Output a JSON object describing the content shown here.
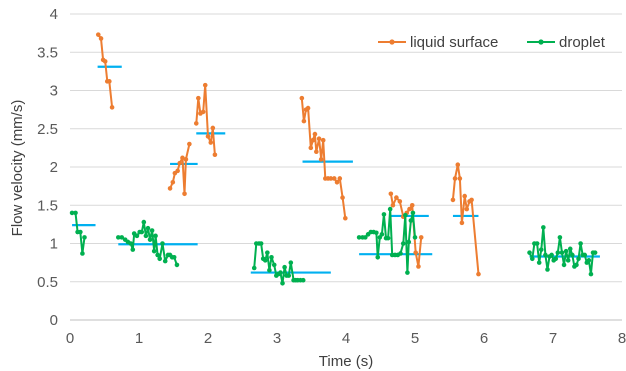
{
  "chart_data": {
    "type": "line",
    "title": "",
    "xlabel": "Time (s)",
    "ylabel": "Flow velocity (mm/s)",
    "xlim": [
      0,
      8
    ],
    "ylim": [
      0,
      4
    ],
    "x_ticks": [
      "0",
      "1",
      "2",
      "3",
      "4",
      "5",
      "6",
      "7",
      "8"
    ],
    "y_ticks": [
      "0",
      "0.5",
      "1",
      "1.5",
      "2",
      "2.5",
      "3",
      "3.5",
      "4"
    ],
    "grid": "horizontal",
    "legend_position": "top-right",
    "colors": {
      "liquid_surface": "#ed7d31",
      "droplet": "#00b050",
      "mean_lines": "#00b0f0"
    },
    "series": [
      {
        "name": "liquid surface",
        "color": "#ed7d31",
        "segments": [
          [
            [
              0.41,
              3.73
            ],
            [
              0.45,
              3.68
            ],
            [
              0.48,
              3.4
            ],
            [
              0.51,
              3.38
            ],
            [
              0.54,
              3.12
            ],
            [
              0.57,
              3.12
            ],
            [
              0.61,
              2.78
            ]
          ],
          [
            [
              1.45,
              1.72
            ],
            [
              1.49,
              1.8
            ],
            [
              1.52,
              1.92
            ],
            [
              1.56,
              1.95
            ],
            [
              1.59,
              2.05
            ],
            [
              1.63,
              2.12
            ],
            [
              1.66,
              1.65
            ],
            [
              1.68,
              2.1
            ],
            [
              1.73,
              2.3
            ]
          ],
          [
            [
              1.83,
              2.57
            ],
            [
              1.86,
              2.9
            ],
            [
              1.89,
              2.7
            ],
            [
              1.93,
              2.72
            ],
            [
              1.96,
              3.07
            ],
            [
              2.0,
              2.4
            ],
            [
              2.04,
              2.32
            ],
            [
              2.07,
              2.51
            ],
            [
              2.1,
              2.16
            ]
          ],
          [
            [
              3.36,
              2.9
            ],
            [
              3.39,
              2.6
            ],
            [
              3.42,
              2.75
            ],
            [
              3.45,
              2.77
            ],
            [
              3.49,
              2.25
            ],
            [
              3.52,
              2.35
            ],
            [
              3.55,
              2.43
            ],
            [
              3.57,
              2.2
            ],
            [
              3.61,
              2.37
            ],
            [
              3.64,
              2.1
            ],
            [
              3.67,
              2.35
            ],
            [
              3.7,
              1.85
            ],
            [
              3.74,
              1.85
            ],
            [
              3.78,
              1.85
            ],
            [
              3.83,
              1.85
            ],
            [
              3.87,
              1.8
            ],
            [
              3.91,
              1.85
            ],
            [
              3.95,
              1.6
            ],
            [
              3.99,
              1.33
            ]
          ],
          [
            [
              4.65,
              1.65
            ],
            [
              4.68,
              1.5
            ],
            [
              4.73,
              1.6
            ],
            [
              4.78,
              1.55
            ],
            [
              4.83,
              1.35
            ],
            [
              4.88,
              1.4
            ],
            [
              4.92,
              1.45
            ],
            [
              4.96,
              1.5
            ],
            [
              5.01,
              0.88
            ],
            [
              5.05,
              0.7
            ],
            [
              5.09,
              1.08
            ]
          ],
          [
            [
              5.55,
              1.57
            ],
            [
              5.58,
              1.85
            ],
            [
              5.62,
              2.03
            ],
            [
              5.65,
              1.85
            ],
            [
              5.68,
              1.27
            ],
            [
              5.72,
              1.62
            ],
            [
              5.75,
              1.45
            ],
            [
              5.79,
              1.55
            ],
            [
              5.82,
              1.57
            ],
            [
              5.92,
              0.6
            ]
          ]
        ]
      },
      {
        "name": "droplet",
        "color": "#00b050",
        "segments": [
          [
            [
              0.03,
              1.4
            ],
            [
              0.08,
              1.4
            ],
            [
              0.11,
              1.15
            ],
            [
              0.15,
              1.15
            ],
            [
              0.18,
              0.87
            ],
            [
              0.21,
              1.08
            ]
          ],
          [
            [
              0.7,
              1.08
            ],
            [
              0.75,
              1.08
            ],
            [
              0.8,
              1.05
            ],
            [
              0.84,
              1.02
            ],
            [
              0.88,
              1.0
            ],
            [
              0.91,
              0.92
            ],
            [
              0.93,
              1.13
            ],
            [
              0.97,
              1.1
            ],
            [
              1.01,
              1.15
            ],
            [
              1.04,
              1.15
            ],
            [
              1.07,
              1.28
            ],
            [
              1.1,
              1.1
            ],
            [
              1.13,
              1.2
            ],
            [
              1.16,
              1.05
            ],
            [
              1.19,
              1.17
            ],
            [
              1.22,
              0.9
            ],
            [
              1.24,
              1.1
            ],
            [
              1.27,
              0.85
            ],
            [
              1.3,
              0.8
            ],
            [
              1.34,
              1.0
            ],
            [
              1.38,
              0.77
            ],
            [
              1.42,
              0.85
            ],
            [
              1.45,
              0.85
            ],
            [
              1.48,
              0.82
            ],
            [
              1.51,
              0.82
            ],
            [
              1.55,
              0.72
            ]
          ],
          [
            [
              2.67,
              0.68
            ],
            [
              2.7,
              1.0
            ],
            [
              2.74,
              1.0
            ],
            [
              2.77,
              1.0
            ],
            [
              2.8,
              0.8
            ],
            [
              2.83,
              0.78
            ],
            [
              2.86,
              0.88
            ],
            [
              2.89,
              0.65
            ],
            [
              2.92,
              0.82
            ],
            [
              2.96,
              0.72
            ],
            [
              2.99,
              0.58
            ],
            [
              3.02,
              0.6
            ],
            [
              3.05,
              0.62
            ],
            [
              3.08,
              0.48
            ],
            [
              3.11,
              0.69
            ],
            [
              3.14,
              0.58
            ],
            [
              3.17,
              0.58
            ],
            [
              3.2,
              0.75
            ],
            [
              3.24,
              0.52
            ],
            [
              3.27,
              0.52
            ],
            [
              3.3,
              0.52
            ],
            [
              3.34,
              0.52
            ],
            [
              3.38,
              0.52
            ]
          ],
          [
            [
              4.19,
              1.08
            ],
            [
              4.24,
              1.08
            ],
            [
              4.28,
              1.08
            ],
            [
              4.32,
              1.12
            ],
            [
              4.36,
              1.15
            ],
            [
              4.4,
              1.15
            ],
            [
              4.44,
              1.14
            ],
            [
              4.46,
              0.82
            ],
            [
              4.49,
              1.08
            ],
            [
              4.52,
              1.12
            ],
            [
              4.55,
              1.38
            ],
            [
              4.58,
              1.07
            ],
            [
              4.61,
              1.07
            ],
            [
              4.64,
              1.45
            ],
            [
              4.67,
              0.85
            ],
            [
              4.71,
              0.85
            ],
            [
              4.75,
              0.85
            ],
            [
              4.79,
              0.87
            ],
            [
              4.83,
              1.0
            ],
            [
              4.86,
              1.37
            ],
            [
              4.89,
              0.62
            ],
            [
              4.91,
              1.02
            ],
            [
              4.94,
              1.3
            ],
            [
              4.97,
              1.4
            ],
            [
              5.0,
              1.08
            ]
          ],
          [
            [
              6.66,
              0.88
            ],
            [
              6.7,
              0.8
            ],
            [
              6.73,
              1.0
            ],
            [
              6.77,
              1.0
            ],
            [
              6.8,
              0.75
            ],
            [
              6.83,
              0.92
            ],
            [
              6.86,
              1.21
            ],
            [
              6.89,
              0.85
            ],
            [
              6.92,
              0.66
            ],
            [
              6.95,
              0.83
            ],
            [
              6.98,
              0.85
            ],
            [
              7.01,
              0.78
            ],
            [
              7.04,
              0.8
            ],
            [
              7.07,
              0.88
            ],
            [
              7.1,
              1.08
            ],
            [
              7.13,
              0.88
            ],
            [
              7.16,
              0.72
            ],
            [
              7.19,
              0.9
            ],
            [
              7.22,
              0.78
            ],
            [
              7.25,
              0.93
            ],
            [
              7.28,
              0.85
            ],
            [
              7.31,
              0.7
            ],
            [
              7.34,
              0.72
            ],
            [
              7.37,
              0.8
            ],
            [
              7.4,
              1.0
            ],
            [
              7.43,
              0.85
            ],
            [
              7.46,
              0.85
            ],
            [
              7.49,
              0.75
            ],
            [
              7.52,
              0.78
            ],
            [
              7.55,
              0.6
            ],
            [
              7.58,
              0.88
            ],
            [
              7.61,
              0.88
            ]
          ]
        ]
      }
    ],
    "mean_lines": [
      {
        "x": [
          0.4,
          0.75
        ],
        "y": 3.31
      },
      {
        "x": [
          1.45,
          1.85
        ],
        "y": 2.04
      },
      {
        "x": [
          1.83,
          2.25
        ],
        "y": 2.44
      },
      {
        "x": [
          3.37,
          4.1
        ],
        "y": 2.07
      },
      {
        "x": [
          4.65,
          5.2
        ],
        "y": 1.36
      },
      {
        "x": [
          5.55,
          5.92
        ],
        "y": 1.36
      },
      {
        "x": [
          0.03,
          0.37
        ],
        "y": 1.24
      },
      {
        "x": [
          0.7,
          1.85
        ],
        "y": 0.99
      },
      {
        "x": [
          2.62,
          3.78
        ],
        "y": 0.62
      },
      {
        "x": [
          4.19,
          5.25
        ],
        "y": 0.86
      },
      {
        "x": [
          6.66,
          7.68
        ],
        "y": 0.83
      }
    ]
  }
}
